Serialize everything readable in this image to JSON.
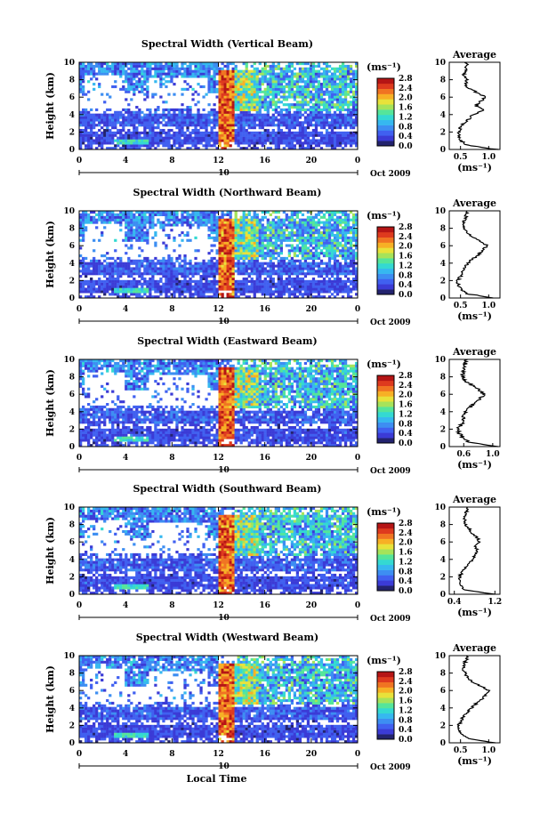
{
  "figure": {
    "xlabel": "Local Time",
    "ylabel": "Height (km)",
    "unit_label": "(ms⁻¹)",
    "avg_title": "Average",
    "avg_xlabel": "(ms⁻¹)",
    "date_label": "Oct 2009",
    "day_label": "10",
    "x_ticks": [
      "0",
      "4",
      "8",
      "12",
      "16",
      "20",
      "0"
    ],
    "y_ticks": [
      "0",
      "2",
      "4",
      "6",
      "8",
      "10"
    ],
    "colorbar_ticks": [
      "0.0",
      "0.4",
      "0.8",
      "1.2",
      "1.6",
      "2.0",
      "2.4",
      "2.8"
    ],
    "colormap": [
      "#23236e",
      "#3b3bd6",
      "#4060f0",
      "#3d8ef2",
      "#36b8f0",
      "#34d9d2",
      "#55e59a",
      "#a6e35a",
      "#e8e23a",
      "#f7b025",
      "#f07422",
      "#de3a1e",
      "#b51515"
    ]
  },
  "chart_data": [
    {
      "type": "heatmap",
      "title": "Spectral Width (Vertical Beam)",
      "x_range": [
        0,
        24
      ],
      "y_range": [
        0,
        10
      ],
      "color_range": [
        0.0,
        2.8
      ],
      "average_profile": {
        "xticks": [
          "0.5",
          "1.0"
        ],
        "xlim": [
          0.3,
          1.2
        ],
        "height_km": [
          0,
          0.5,
          1,
          1.5,
          2,
          2.5,
          3,
          3.5,
          4,
          4.5,
          5,
          5.5,
          6,
          6.5,
          7,
          7.5,
          8,
          8.5,
          9,
          9.5,
          10
        ],
        "width": [
          1.15,
          0.62,
          0.5,
          0.47,
          0.46,
          0.5,
          0.55,
          0.65,
          0.72,
          0.9,
          0.78,
          0.85,
          0.95,
          0.8,
          0.65,
          0.58,
          0.62,
          0.55,
          0.58,
          0.6,
          0.62
        ]
      }
    },
    {
      "type": "heatmap",
      "title": "Spectral Width (Northward Beam)",
      "x_range": [
        0,
        24
      ],
      "y_range": [
        0,
        10
      ],
      "color_range": [
        0.0,
        2.8
      ],
      "average_profile": {
        "xticks": [
          "0.5",
          "1.0"
        ],
        "xlim": [
          0.3,
          1.2
        ],
        "height_km": [
          0,
          0.5,
          1,
          1.5,
          2,
          2.5,
          3,
          3.5,
          4,
          4.5,
          5,
          5.5,
          6,
          6.5,
          7,
          7.5,
          8,
          8.5,
          9,
          9.5,
          10
        ],
        "width": [
          1.1,
          0.6,
          0.5,
          0.46,
          0.45,
          0.5,
          0.52,
          0.58,
          0.62,
          0.72,
          0.82,
          0.9,
          0.97,
          0.85,
          0.72,
          0.6,
          0.58,
          0.55,
          0.58,
          0.6,
          0.62
        ]
      }
    },
    {
      "type": "heatmap",
      "title": "Spectral Width (Eastward Beam)",
      "x_range": [
        0,
        24
      ],
      "y_range": [
        0,
        10
      ],
      "color_range": [
        0.0,
        2.8
      ],
      "average_profile": {
        "xticks": [
          "0.6",
          "1.0"
        ],
        "xlim": [
          0.4,
          1.1
        ],
        "height_km": [
          0,
          0.5,
          1,
          1.5,
          2,
          2.5,
          3,
          3.5,
          4,
          4.5,
          5,
          5.5,
          6,
          6.5,
          7,
          7.5,
          8,
          8.5,
          9,
          9.5,
          10
        ],
        "width": [
          1.05,
          0.68,
          0.58,
          0.54,
          0.52,
          0.56,
          0.6,
          0.58,
          0.62,
          0.68,
          0.75,
          0.82,
          0.88,
          0.82,
          0.72,
          0.62,
          0.6,
          0.58,
          0.6,
          0.62,
          0.64
        ]
      }
    },
    {
      "type": "heatmap",
      "title": "Spectral Width (Southward Beam)",
      "x_range": [
        0,
        24
      ],
      "y_range": [
        0,
        10
      ],
      "color_range": [
        0.0,
        2.8
      ],
      "average_profile": {
        "xticks": [
          "0.4",
          "1.2"
        ],
        "xlim": [
          0.3,
          1.3
        ],
        "height_km": [
          0,
          0.5,
          1,
          1.5,
          2,
          2.5,
          3,
          3.5,
          4,
          4.5,
          5,
          5.5,
          6,
          6.5,
          7,
          7.5,
          8,
          8.5,
          9,
          9.5,
          10
        ],
        "width": [
          1.2,
          0.62,
          0.52,
          0.5,
          0.5,
          0.55,
          0.62,
          0.7,
          0.75,
          0.8,
          0.85,
          0.82,
          0.9,
          0.85,
          0.75,
          0.7,
          0.62,
          0.6,
          0.62,
          0.64,
          0.66
        ]
      }
    },
    {
      "type": "heatmap",
      "title": "Spectral Width (Westward Beam)",
      "x_range": [
        0,
        24
      ],
      "y_range": [
        0,
        10
      ],
      "color_range": [
        0.0,
        2.8
      ],
      "average_profile": {
        "xticks": [
          "0.5",
          "1.0"
        ],
        "xlim": [
          0.3,
          1.2
        ],
        "height_km": [
          0,
          0.5,
          1,
          1.5,
          2,
          2.5,
          3,
          3.5,
          4,
          4.5,
          5,
          5.5,
          6,
          6.5,
          7,
          7.5,
          8,
          8.5,
          9,
          9.5,
          10
        ],
        "width": [
          1.1,
          0.62,
          0.52,
          0.48,
          0.47,
          0.5,
          0.55,
          0.62,
          0.7,
          0.78,
          0.88,
          0.95,
          1.0,
          0.86,
          0.72,
          0.62,
          0.58,
          0.55,
          0.57,
          0.6,
          0.62
        ]
      }
    }
  ]
}
